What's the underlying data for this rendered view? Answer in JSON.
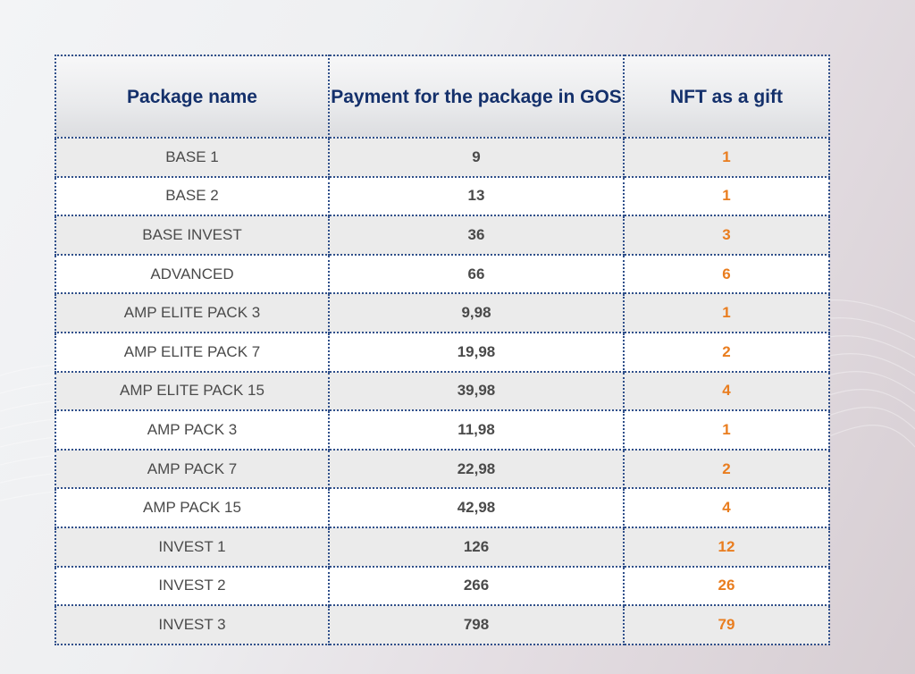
{
  "table": {
    "headers": {
      "package": "Package name",
      "payment": "Payment for the package in GOS",
      "nft": "NFT as a gift"
    },
    "rows": [
      {
        "name": "BASE 1",
        "payment": "9",
        "nft": "1"
      },
      {
        "name": "BASE 2",
        "payment": "13",
        "nft": "1"
      },
      {
        "name": "BASE INVEST",
        "payment": "36",
        "nft": "3"
      },
      {
        "name": "ADVANCED",
        "payment": "66",
        "nft": "6"
      },
      {
        "name": "AMP ELITE PACK 3",
        "payment": "9,98",
        "nft": "1"
      },
      {
        "name": "AMP ELITE PACK 7",
        "payment": "19,98",
        "nft": "2"
      },
      {
        "name": "AMP ELITE PACK 15",
        "payment": "39,98",
        "nft": "4"
      },
      {
        "name": "AMP PACK 3",
        "payment": "11,98",
        "nft": "1"
      },
      {
        "name": "AMP PACK 7",
        "payment": "22,98",
        "nft": "2"
      },
      {
        "name": "AMP PACK 15",
        "payment": "42,98",
        "nft": "4"
      },
      {
        "name": "INVEST 1",
        "payment": "126",
        "nft": "12"
      },
      {
        "name": "INVEST 2",
        "payment": "266",
        "nft": "26"
      },
      {
        "name": "INVEST 3",
        "payment": "798",
        "nft": "79"
      }
    ]
  },
  "colors": {
    "header_text": "#14306b",
    "body_text": "#4a4a4a",
    "nft_accent": "#e97d1f",
    "border": "#2f4f8a"
  }
}
